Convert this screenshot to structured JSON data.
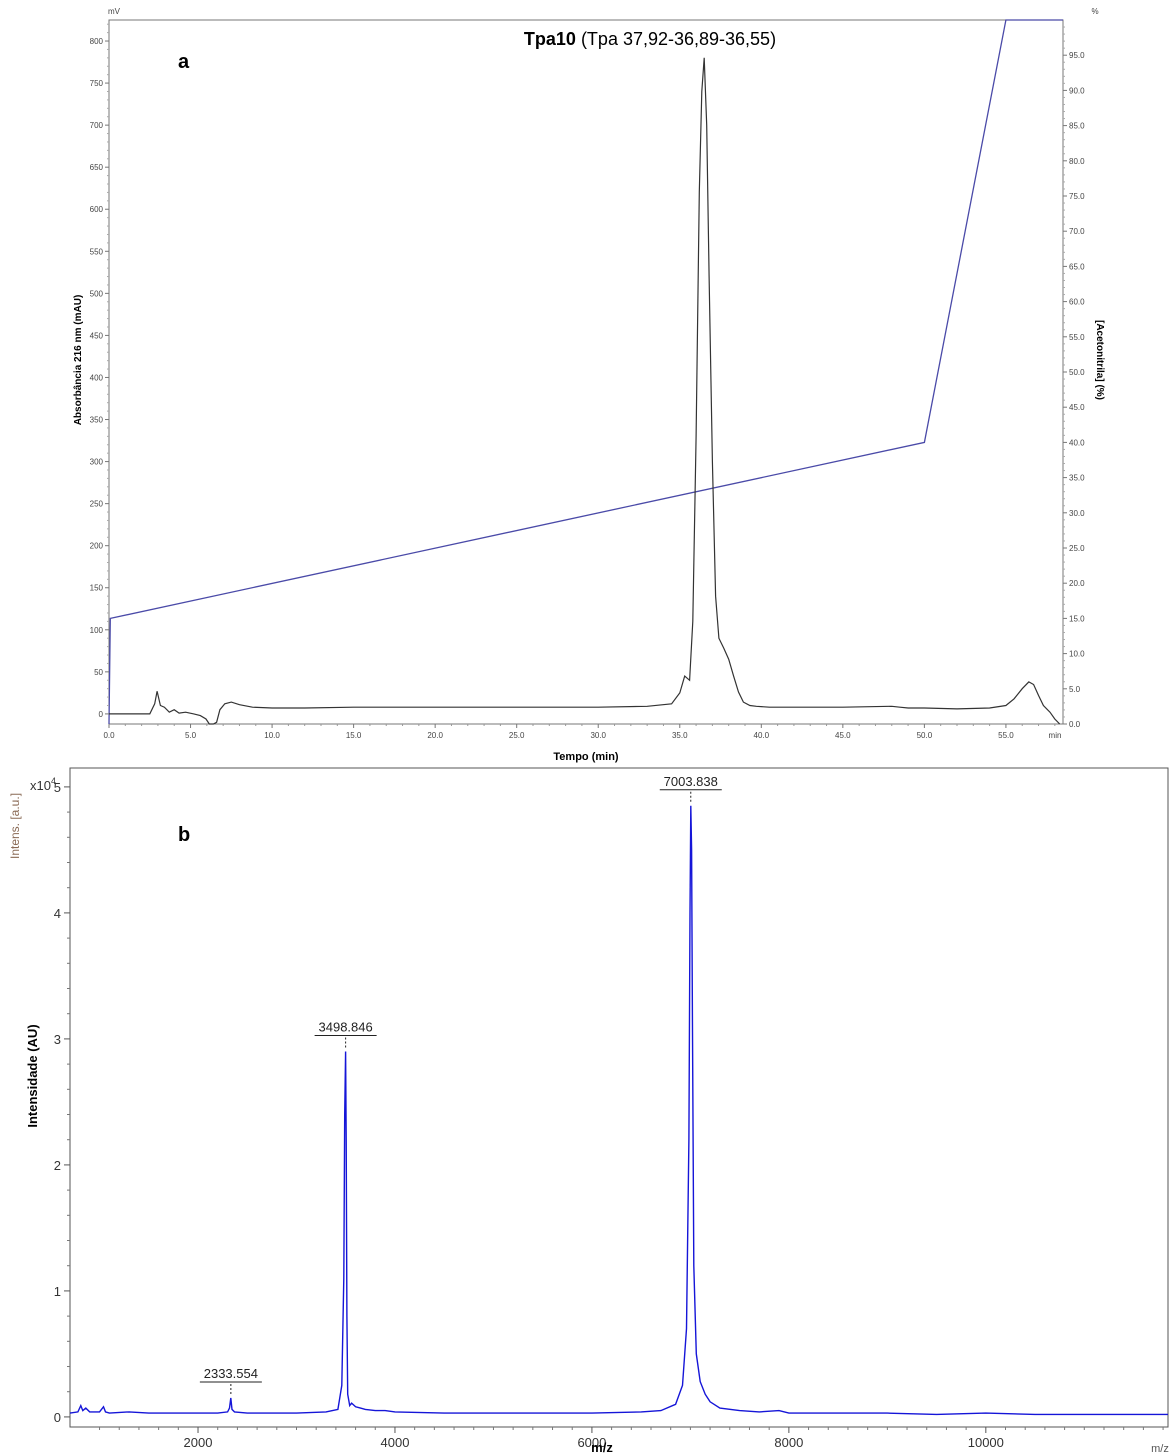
{
  "chart_data": [
    {
      "id": "a",
      "type": "line",
      "panel_letter": "a",
      "annotation": {
        "bold": "Tpa10",
        "rest": " (Tpa 37,92-36,89-36,55)"
      },
      "xlabel": "Tempo (min)",
      "ylabel": "Absorbância 216 nm (mAU)",
      "y2label": "[Acetonitrila] (%)",
      "y_unit": "mV",
      "y2_unit": "%",
      "x_unit": "min",
      "xlim": [
        0,
        58.5
      ],
      "ylim": [
        -12,
        825
      ],
      "y2lim": [
        0,
        100
      ],
      "x_ticks": [
        "0.0",
        "5.0",
        "10.0",
        "15.0",
        "20.0",
        "25.0",
        "30.0",
        "35.0",
        "40.0",
        "45.0",
        "50.0",
        "55.0"
      ],
      "y_ticks": [
        "0",
        "50",
        "100",
        "150",
        "200",
        "250",
        "300",
        "350",
        "400",
        "450",
        "500",
        "550",
        "600",
        "650",
        "700",
        "750",
        "800"
      ],
      "y2_ticks": [
        "0.0",
        "5.0",
        "10.0",
        "15.0",
        "20.0",
        "25.0",
        "30.0",
        "35.0",
        "40.0",
        "45.0",
        "50.0",
        "55.0",
        "60.0",
        "65.0",
        "70.0",
        "75.0",
        "80.0",
        "85.0",
        "90.0",
        "95.0"
      ],
      "colors": {
        "absorbance": "#333333",
        "gradient": "#4a4aa8"
      },
      "series": [
        {
          "axis": "left",
          "x": [
            0,
            2.5,
            2.8,
            2.95,
            3.15,
            3.4,
            3.7,
            4.0,
            4.3,
            4.7,
            5.2,
            5.6,
            5.95,
            6.15,
            6.4,
            6.6,
            6.8,
            7.1,
            7.5,
            8.0,
            8.8,
            10.0,
            12.0,
            15.0,
            16.0,
            20.0,
            25.0,
            30.0,
            33.0,
            34.5,
            35.0,
            35.3,
            35.6,
            35.8,
            36.0,
            36.2,
            36.35,
            36.5,
            36.65,
            36.8,
            37.0,
            37.2,
            37.4,
            37.7,
            38.0,
            38.3,
            38.6,
            38.9,
            39.3,
            39.7,
            40.5,
            42.0,
            45.0,
            48.0,
            48.5,
            49.0,
            50.0,
            52.0,
            54.0,
            55.0,
            55.5,
            56.0,
            56.4,
            56.7,
            57.0,
            57.3,
            57.7,
            58.0,
            58.3
          ],
          "y": [
            0,
            0,
            12,
            27,
            10,
            8,
            2,
            5,
            1,
            2,
            0,
            -2,
            -6,
            -12,
            -12,
            -10,
            5,
            12,
            14,
            11,
            8,
            7,
            7,
            8,
            8,
            8,
            8,
            8,
            9,
            12,
            25,
            45,
            40,
            110,
            330,
            620,
            740,
            780,
            700,
            520,
            300,
            140,
            90,
            78,
            65,
            45,
            26,
            14,
            10,
            9,
            8,
            8,
            8,
            9,
            8,
            7,
            7,
            6,
            7,
            10,
            18,
            30,
            38,
            35,
            22,
            10,
            2,
            -6,
            -12
          ]
        },
        {
          "axis": "right",
          "x": [
            0,
            0.08,
            50.0,
            55.0,
            58.5
          ],
          "y": [
            0,
            15,
            40,
            100,
            100
          ]
        }
      ]
    },
    {
      "id": "b",
      "type": "line",
      "panel_letter": "b",
      "xlabel": "m/z",
      "ylabel": "Intensidade (AU)",
      "instrument_ylabel": "Intens. [a.u.]",
      "x_unit": "m/z",
      "y_multiplier": "x10",
      "y_multiplier_exp": "4",
      "xlim": [
        700,
        11850
      ],
      "ylim": [
        -0.08,
        5.15
      ],
      "x_ticks": [
        2000,
        4000,
        6000,
        8000,
        10000
      ],
      "y_ticks": [
        0,
        1,
        2,
        3,
        4,
        5
      ],
      "colors": {
        "spectrum": "#1515d8"
      },
      "peak_labels": [
        {
          "label": "2333.554",
          "x": 2333.554,
          "y": 0.15
        },
        {
          "label": "3498.846",
          "x": 3498.846,
          "y": 2.9
        },
        {
          "label": "7003.838",
          "x": 7003.838,
          "y": 4.85
        }
      ],
      "series": [
        {
          "x": [
            700,
            780,
            810,
            830,
            860,
            900,
            1000,
            1040,
            1060,
            1100,
            1300,
            1500,
            1800,
            2000,
            2200,
            2300,
            2320,
            2333,
            2345,
            2370,
            2500,
            3000,
            3300,
            3420,
            3460,
            3480,
            3490,
            3499,
            3505,
            3512,
            3520,
            3540,
            3560,
            3600,
            3650,
            3700,
            3800,
            3900,
            4000,
            4500,
            5000,
            5500,
            6000,
            6500,
            6700,
            6850,
            6920,
            6960,
            6985,
            6996,
            7004,
            7012,
            7020,
            7035,
            7060,
            7100,
            7150,
            7200,
            7300,
            7500,
            7700,
            7900,
            8000,
            8500,
            9000,
            9500,
            10000,
            10500,
            11000,
            11500,
            11850
          ],
          "y": [
            0.03,
            0.04,
            0.09,
            0.05,
            0.07,
            0.04,
            0.04,
            0.08,
            0.04,
            0.03,
            0.04,
            0.03,
            0.03,
            0.03,
            0.03,
            0.04,
            0.07,
            0.15,
            0.06,
            0.04,
            0.03,
            0.03,
            0.04,
            0.06,
            0.25,
            1.1,
            2.4,
            2.9,
            2.2,
            0.8,
            0.18,
            0.09,
            0.11,
            0.08,
            0.07,
            0.06,
            0.05,
            0.05,
            0.04,
            0.03,
            0.03,
            0.03,
            0.03,
            0.04,
            0.05,
            0.1,
            0.25,
            0.7,
            2.2,
            4.0,
            4.85,
            4.5,
            3.2,
            1.2,
            0.5,
            0.28,
            0.18,
            0.12,
            0.07,
            0.05,
            0.04,
            0.05,
            0.03,
            0.03,
            0.03,
            0.02,
            0.03,
            0.02,
            0.02,
            0.02,
            0.02
          ]
        }
      ]
    }
  ]
}
